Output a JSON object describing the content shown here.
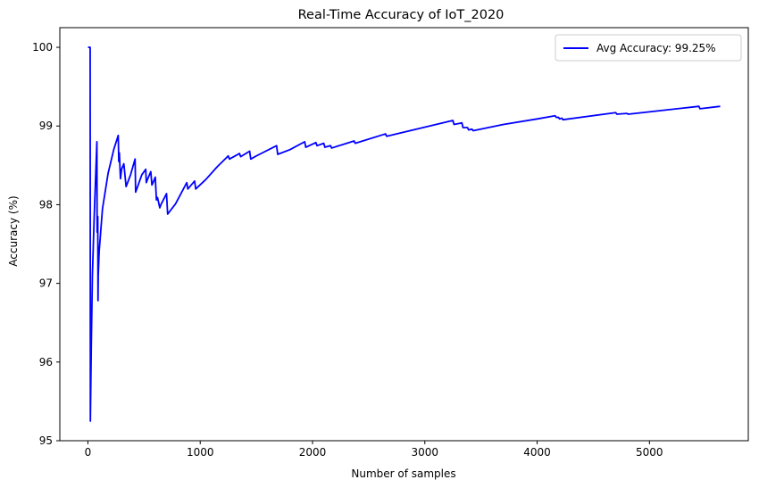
{
  "chart_data": {
    "type": "line",
    "title": "Real-Time Accuracy of IoT_2020",
    "xlabel": "Number of samples",
    "ylabel": "Accuracy (%)",
    "xlim": [
      -250,
      5880
    ],
    "ylim": [
      95,
      100.25
    ],
    "xticks": [
      0,
      1000,
      2000,
      3000,
      4000,
      5000
    ],
    "yticks": [
      95,
      96,
      97,
      98,
      99,
      100
    ],
    "xtick_labels": [
      "0",
      "1000",
      "2000",
      "3000",
      "4000",
      "5000"
    ],
    "ytick_labels": [
      "95",
      "96",
      "97",
      "98",
      "99",
      "100"
    ],
    "grid": false,
    "legend_position": "top-right",
    "colors": {
      "series": "#0000ff",
      "axes": "#000000",
      "background": "#ffffff"
    },
    "series": [
      {
        "name": "Avg Accuracy: 99.25%",
        "x": [
          1,
          20,
          22,
          30,
          40,
          55,
          70,
          80,
          82,
          88,
          90,
          92,
          100,
          130,
          180,
          230,
          270,
          275,
          280,
          290,
          300,
          320,
          340,
          380,
          420,
          425,
          440,
          480,
          515,
          520,
          530,
          560,
          570,
          580,
          600,
          610,
          620,
          640,
          650,
          700,
          710,
          780,
          880,
          890,
          950,
          960,
          1050,
          1150,
          1250,
          1260,
          1350,
          1360,
          1440,
          1450,
          1500,
          1680,
          1690,
          1800,
          1930,
          1940,
          2030,
          2040,
          2100,
          2110,
          2160,
          2170,
          2370,
          2380,
          2650,
          2660,
          3250,
          3260,
          3330,
          3340,
          3380,
          3390,
          3420,
          3430,
          3700,
          4000,
          4160,
          4170,
          4190,
          4200,
          4220,
          4230,
          4700,
          4710,
          4800,
          4810,
          5440,
          5450,
          5630
        ],
        "y": [
          100.0,
          100.0,
          95.25,
          96.2,
          97.1,
          97.8,
          98.4,
          98.8,
          97.65,
          97.85,
          96.78,
          97.1,
          97.4,
          97.95,
          98.4,
          98.7,
          98.88,
          98.55,
          98.66,
          98.33,
          98.45,
          98.52,
          98.23,
          98.38,
          98.58,
          98.16,
          98.22,
          98.38,
          98.45,
          98.28,
          98.32,
          98.42,
          98.25,
          98.28,
          98.35,
          98.06,
          98.09,
          97.96,
          98.0,
          98.14,
          97.88,
          98.01,
          98.28,
          98.2,
          98.3,
          98.2,
          98.32,
          98.48,
          98.62,
          98.58,
          98.65,
          98.61,
          98.68,
          98.58,
          98.62,
          98.75,
          98.64,
          98.7,
          98.8,
          98.73,
          98.79,
          98.75,
          98.78,
          98.73,
          98.75,
          98.72,
          98.81,
          98.78,
          98.9,
          98.87,
          99.07,
          99.02,
          99.04,
          98.98,
          98.98,
          98.95,
          98.96,
          98.94,
          99.02,
          99.09,
          99.13,
          99.11,
          99.11,
          99.09,
          99.1,
          99.08,
          99.17,
          99.15,
          99.16,
          99.15,
          99.25,
          99.22,
          99.25
        ]
      }
    ]
  }
}
